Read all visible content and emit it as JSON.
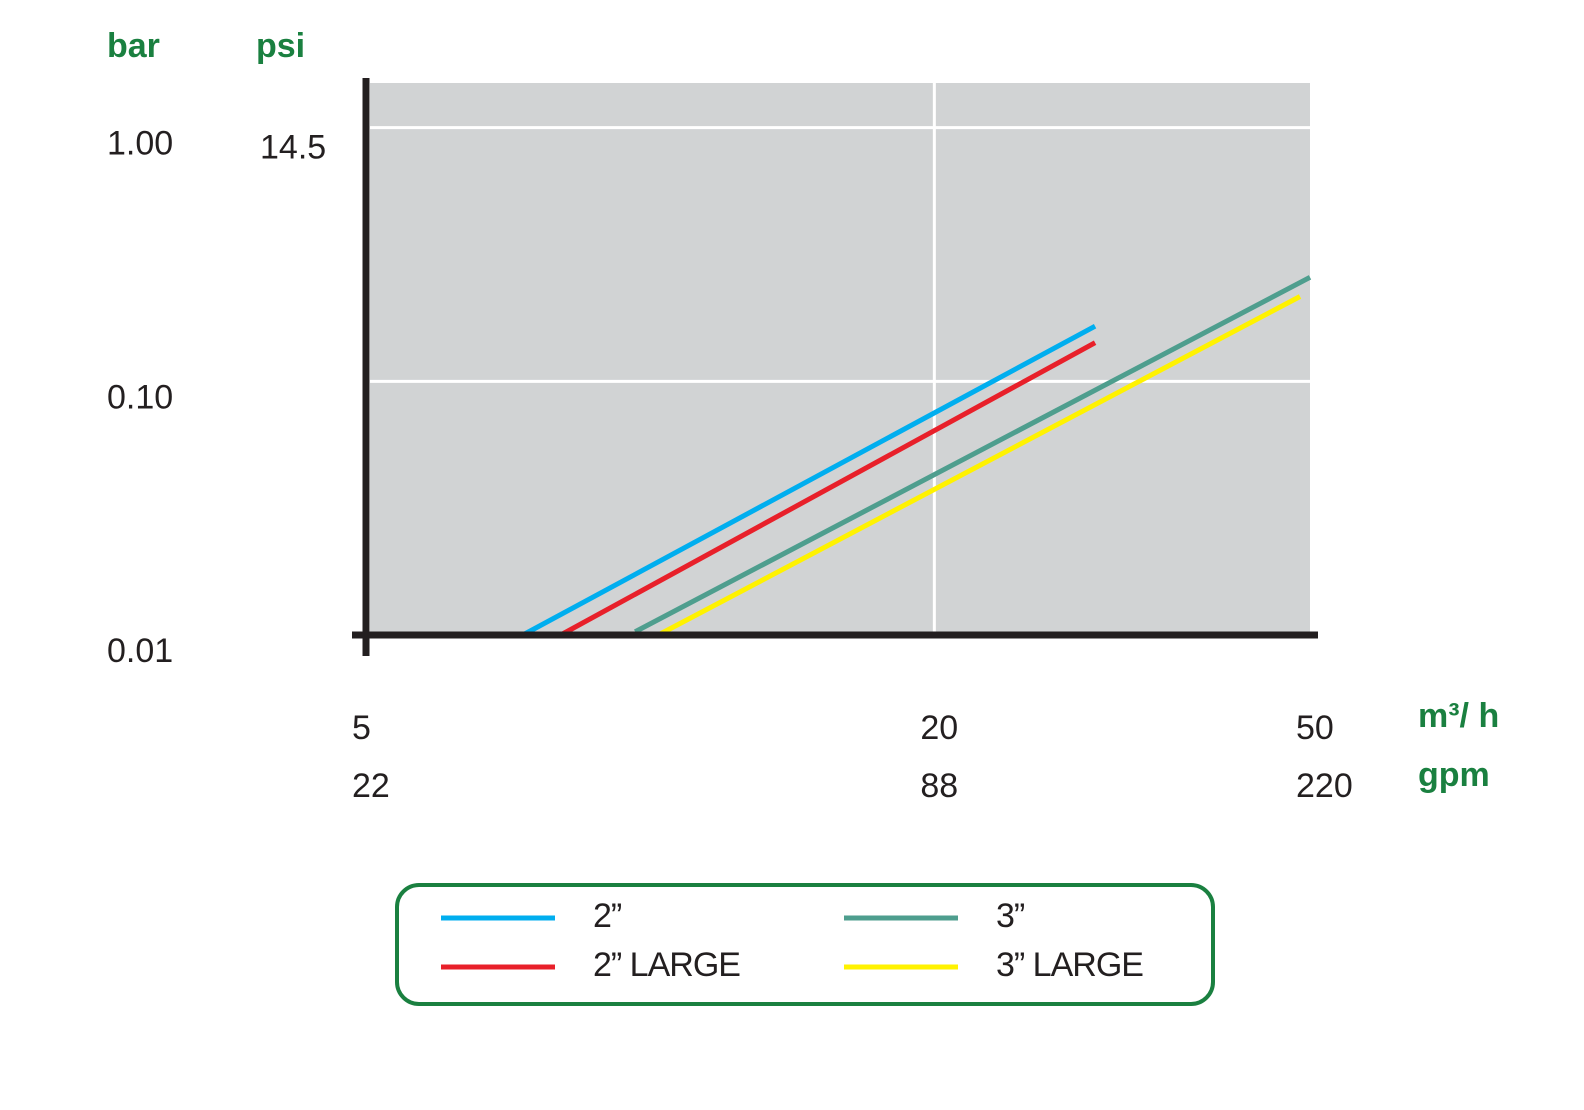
{
  "chart_data": {
    "type": "line",
    "log_x": true,
    "log_y": true,
    "grid": true,
    "legend": "bottom",
    "y_label": "bar",
    "y2_label": "psi",
    "x_label": "m³/ h",
    "x2_label": "gpm",
    "xlim": [
      5,
      50
    ],
    "xticks": [
      5,
      20,
      50
    ],
    "x2lim": [
      22,
      220
    ],
    "x2ticks": [
      22,
      88,
      220
    ],
    "ylim": [
      0.01,
      1.5
    ],
    "yticks": [
      {
        "value": 1,
        "label": "1.00"
      },
      {
        "value": 0.1,
        "label": "0.10"
      },
      {
        "value": 0.01,
        "label": "0.01"
      }
    ],
    "y2lim": [
      0.145,
      21.75
    ],
    "y2ticks": [
      14.5
    ],
    "series": [
      {
        "name": "2”",
        "color": "#00aeef",
        "x": [
          7.33,
          29.6
        ],
        "values": [
          0.01,
          0.165
        ]
      },
      {
        "name": "2” LARGE",
        "color": "#e8202a",
        "x": [
          8.04,
          29.6
        ],
        "values": [
          0.01,
          0.142
        ]
      },
      {
        "name": "3”",
        "color": "#4e9e8e",
        "x": [
          9.64,
          50
        ],
        "values": [
          0.0103,
          0.257
        ]
      },
      {
        "name": "3” LARGE",
        "color": "#fff200",
        "x": [
          10.2,
          48.8
        ],
        "values": [
          0.01,
          0.216
        ]
      }
    ]
  }
}
